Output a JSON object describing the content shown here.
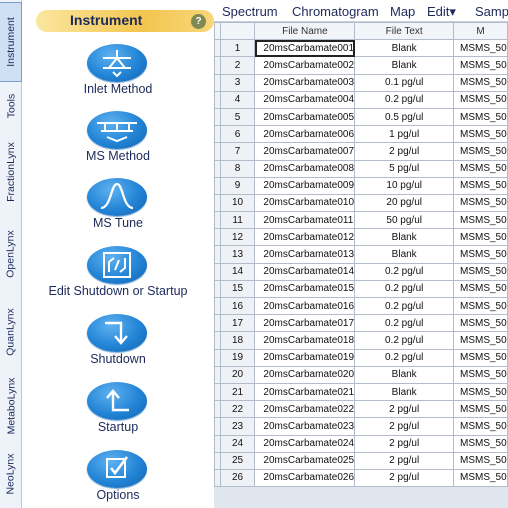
{
  "vertical_tabs": [
    "Instrument",
    "Tools",
    "FractionLynx",
    "OpenLynx",
    "QuanLynx",
    "MetaboLynx",
    "NeoLynx"
  ],
  "panel": {
    "title": "Instrument",
    "help_glyph": "?",
    "tools": [
      {
        "label": "Inlet Method",
        "icon": "inlet-method-icon"
      },
      {
        "label": "MS Method",
        "icon": "ms-method-icon"
      },
      {
        "label": "MS Tune",
        "icon": "ms-tune-icon"
      },
      {
        "label": "Edit Shutdown or Startup",
        "icon": "edit-shutdown-startup-icon"
      },
      {
        "label": "Shutdown",
        "icon": "shutdown-icon"
      },
      {
        "label": "Startup",
        "icon": "startup-icon"
      },
      {
        "label": "Options",
        "icon": "options-icon"
      }
    ]
  },
  "menu": [
    "Spectrum",
    "Chromatogram",
    "Map",
    "Edit▾",
    "Samp"
  ],
  "table": {
    "headers": [
      "",
      "File Name",
      "File Text",
      "M"
    ],
    "rows": [
      {
        "n": "1",
        "file": "20msCarbamate001",
        "text": "Blank",
        "ms": "MSMS_50"
      },
      {
        "n": "2",
        "file": "20msCarbamate002",
        "text": "Blank",
        "ms": "MSMS_50"
      },
      {
        "n": "3",
        "file": "20msCarbamate003",
        "text": "0.1 pg/ul",
        "ms": "MSMS_50"
      },
      {
        "n": "4",
        "file": "20msCarbamate004",
        "text": "0.2 pg/ul",
        "ms": "MSMS_50"
      },
      {
        "n": "5",
        "file": "20msCarbamate005",
        "text": "0.5 pg/ul",
        "ms": "MSMS_50"
      },
      {
        "n": "6",
        "file": "20msCarbamate006",
        "text": "1 pg/ul",
        "ms": "MSMS_50"
      },
      {
        "n": "7",
        "file": "20msCarbamate007",
        "text": "2 pg/ul",
        "ms": "MSMS_50"
      },
      {
        "n": "8",
        "file": "20msCarbamate008",
        "text": "5 pg/ul",
        "ms": "MSMS_50"
      },
      {
        "n": "9",
        "file": "20msCarbamate009",
        "text": "10 pg/ul",
        "ms": "MSMS_50"
      },
      {
        "n": "10",
        "file": "20msCarbamate010",
        "text": "20 pg/ul",
        "ms": "MSMS_50"
      },
      {
        "n": "11",
        "file": "20msCarbamate011",
        "text": "50 pg/ul",
        "ms": "MSMS_50"
      },
      {
        "n": "12",
        "file": "20msCarbamate012",
        "text": "Blank",
        "ms": "MSMS_50"
      },
      {
        "n": "13",
        "file": "20msCarbamate013",
        "text": "Blank",
        "ms": "MSMS_50"
      },
      {
        "n": "14",
        "file": "20msCarbamate014",
        "text": "0.2 pg/ul",
        "ms": "MSMS_50"
      },
      {
        "n": "15",
        "file": "20msCarbamate015",
        "text": "0.2 pg/ul",
        "ms": "MSMS_50"
      },
      {
        "n": "16",
        "file": "20msCarbamate016",
        "text": "0.2 pg/ul",
        "ms": "MSMS_50"
      },
      {
        "n": "17",
        "file": "20msCarbamate017",
        "text": "0.2 pg/ul",
        "ms": "MSMS_50"
      },
      {
        "n": "18",
        "file": "20msCarbamate018",
        "text": "0.2 pg/ul",
        "ms": "MSMS_50"
      },
      {
        "n": "19",
        "file": "20msCarbamate019",
        "text": "0.2 pg/ul",
        "ms": "MSMS_50"
      },
      {
        "n": "20",
        "file": "20msCarbamate020",
        "text": "Blank",
        "ms": "MSMS_50"
      },
      {
        "n": "21",
        "file": "20msCarbamate021",
        "text": "Blank",
        "ms": "MSMS_50"
      },
      {
        "n": "22",
        "file": "20msCarbamate022",
        "text": "2 pg/ul",
        "ms": "MSMS_50"
      },
      {
        "n": "23",
        "file": "20msCarbamate023",
        "text": "2 pg/ul",
        "ms": "MSMS_50"
      },
      {
        "n": "24",
        "file": "20msCarbamate024",
        "text": "2 pg/ul",
        "ms": "MSMS_50"
      },
      {
        "n": "25",
        "file": "20msCarbamate025",
        "text": "2 pg/ul",
        "ms": "MSMS_50"
      },
      {
        "n": "26",
        "file": "20msCarbamate026",
        "text": "2 pg/ul",
        "ms": "MSMS_50"
      }
    ]
  },
  "colors": {
    "accent": "#2284d6",
    "header_gold": "#f3c54f",
    "text": "#1c2a5a"
  }
}
